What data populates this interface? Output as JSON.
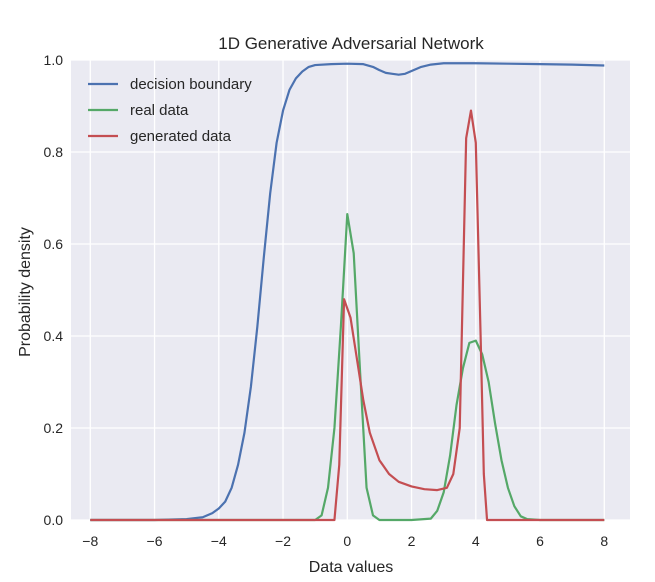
{
  "chart_data": {
    "type": "line",
    "title": "1D Generative Adversarial Network",
    "xlabel": "Data values",
    "ylabel": "Probability density",
    "xlim": [
      -8.6,
      8.8
    ],
    "ylim": [
      0,
      1.0
    ],
    "xticks": [
      -8,
      -6,
      -4,
      -2,
      0,
      2,
      4,
      6,
      8
    ],
    "xtick_labels": [
      "−8",
      "−6",
      "−4",
      "−2",
      "0",
      "2",
      "4",
      "6",
      "8"
    ],
    "yticks": [
      0.0,
      0.2,
      0.4,
      0.6,
      0.8,
      1.0
    ],
    "ytick_labels": [
      "0.0",
      "0.2",
      "0.4",
      "0.6",
      "0.8",
      "1.0"
    ],
    "grid": true,
    "legend_position": "top-left",
    "background": "#eaeaf2",
    "series": [
      {
        "name": "decision boundary",
        "color": "#4c72b0",
        "points": [
          [
            -8,
            0.0
          ],
          [
            -6,
            0.0
          ],
          [
            -5,
            0.002
          ],
          [
            -4.5,
            0.006
          ],
          [
            -4.2,
            0.015
          ],
          [
            -4,
            0.025
          ],
          [
            -3.8,
            0.04
          ],
          [
            -3.6,
            0.07
          ],
          [
            -3.4,
            0.12
          ],
          [
            -3.2,
            0.19
          ],
          [
            -3.0,
            0.29
          ],
          [
            -2.8,
            0.42
          ],
          [
            -2.6,
            0.57
          ],
          [
            -2.4,
            0.71
          ],
          [
            -2.2,
            0.82
          ],
          [
            -2.0,
            0.89
          ],
          [
            -1.8,
            0.935
          ],
          [
            -1.6,
            0.96
          ],
          [
            -1.4,
            0.975
          ],
          [
            -1.2,
            0.985
          ],
          [
            -1.0,
            0.989
          ],
          [
            -0.5,
            0.991
          ],
          [
            0,
            0.992
          ],
          [
            0.5,
            0.991
          ],
          [
            0.8,
            0.985
          ],
          [
            1.0,
            0.978
          ],
          [
            1.2,
            0.972
          ],
          [
            1.4,
            0.97
          ],
          [
            1.6,
            0.968
          ],
          [
            1.8,
            0.97
          ],
          [
            2.0,
            0.976
          ],
          [
            2.3,
            0.985
          ],
          [
            2.6,
            0.99
          ],
          [
            3.0,
            0.993
          ],
          [
            4.0,
            0.993
          ],
          [
            5.0,
            0.992
          ],
          [
            6.0,
            0.991
          ],
          [
            7.0,
            0.99
          ],
          [
            8.0,
            0.988
          ]
        ]
      },
      {
        "name": "real data",
        "color": "#55a868",
        "points": [
          [
            -8,
            0.0
          ],
          [
            -1.0,
            0.0
          ],
          [
            -0.8,
            0.01
          ],
          [
            -0.6,
            0.07
          ],
          [
            -0.4,
            0.2
          ],
          [
            -0.2,
            0.42
          ],
          [
            0.0,
            0.665
          ],
          [
            0.2,
            0.58
          ],
          [
            0.4,
            0.32
          ],
          [
            0.6,
            0.07
          ],
          [
            0.8,
            0.01
          ],
          [
            1.0,
            0.0
          ],
          [
            2.0,
            0.0
          ],
          [
            2.6,
            0.003
          ],
          [
            2.8,
            0.02
          ],
          [
            3.0,
            0.06
          ],
          [
            3.2,
            0.14
          ],
          [
            3.4,
            0.25
          ],
          [
            3.6,
            0.33
          ],
          [
            3.8,
            0.385
          ],
          [
            4.0,
            0.39
          ],
          [
            4.2,
            0.36
          ],
          [
            4.4,
            0.3
          ],
          [
            4.6,
            0.21
          ],
          [
            4.8,
            0.13
          ],
          [
            5.0,
            0.07
          ],
          [
            5.2,
            0.03
          ],
          [
            5.4,
            0.008
          ],
          [
            5.6,
            0.002
          ],
          [
            6.0,
            0.0
          ],
          [
            8.0,
            0.0
          ]
        ]
      },
      {
        "name": "generated data",
        "color": "#c44e52",
        "points": [
          [
            -8,
            0.0
          ],
          [
            -0.4,
            0.0
          ],
          [
            -0.25,
            0.12
          ],
          [
            -0.1,
            0.48
          ],
          [
            0.1,
            0.44
          ],
          [
            0.3,
            0.35
          ],
          [
            0.5,
            0.26
          ],
          [
            0.7,
            0.19
          ],
          [
            1.0,
            0.13
          ],
          [
            1.3,
            0.1
          ],
          [
            1.6,
            0.083
          ],
          [
            2.0,
            0.073
          ],
          [
            2.4,
            0.067
          ],
          [
            2.8,
            0.065
          ],
          [
            3.1,
            0.07
          ],
          [
            3.3,
            0.1
          ],
          [
            3.5,
            0.2
          ],
          [
            3.7,
            0.83
          ],
          [
            3.85,
            0.89
          ],
          [
            4.0,
            0.82
          ],
          [
            4.15,
            0.4
          ],
          [
            4.25,
            0.1
          ],
          [
            4.35,
            0.0
          ],
          [
            8.0,
            0.0
          ]
        ]
      }
    ]
  }
}
